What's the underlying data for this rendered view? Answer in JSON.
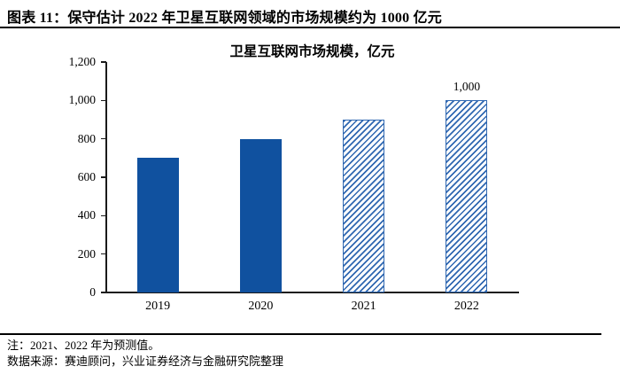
{
  "page": {
    "header_title": "图表 11：保守估计 2022 年卫星互联网领域的市场规模约为 1000 亿元",
    "note_line1": "注：2021、2022 年为预测值。",
    "note_line2": "数据来源：赛迪顾问，兴业证券经济与金融研究院整理"
  },
  "chart_data": {
    "type": "bar",
    "title": "卫星互联网市场规模，亿元",
    "categories": [
      "2019",
      "2020",
      "2021",
      "2022"
    ],
    "values": [
      700,
      800,
      900,
      1000
    ],
    "forecast": [
      false,
      false,
      true,
      true
    ],
    "data_labels": [
      "",
      "",
      "",
      "1,000"
    ],
    "xlabel": "",
    "ylabel": "",
    "ylim": [
      0,
      1200
    ],
    "yticks": [
      0,
      200,
      400,
      600,
      800,
      1000,
      1200
    ],
    "ytick_labels": [
      "0",
      "200",
      "400",
      "600",
      "800",
      "1,000",
      "1,200"
    ],
    "grid": false,
    "legend": "none",
    "colors": {
      "bar_solid": "#10519f",
      "bar_hatch_stripe": "#2f67b1",
      "axis": "#1a1a1a",
      "text": "#000000"
    }
  }
}
